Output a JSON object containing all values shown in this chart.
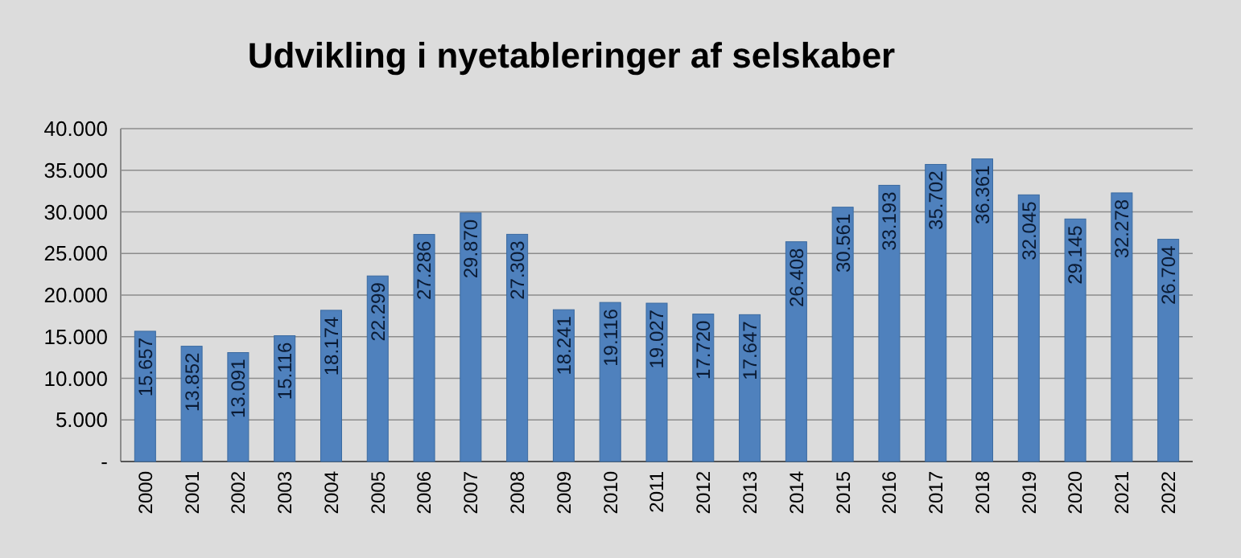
{
  "chart_data": {
    "type": "bar",
    "title": "Udvikling i nyetableringer af selskaber",
    "categories": [
      "2000",
      "2001",
      "2002",
      "2003",
      "2004",
      "2005",
      "2006",
      "2007",
      "2008",
      "2009",
      "2010",
      "2011",
      "2012",
      "2013",
      "2014",
      "2015",
      "2016",
      "2017",
      "2018",
      "2019",
      "2020",
      "2021",
      "2022"
    ],
    "values": [
      15657,
      13852,
      13091,
      15116,
      18174,
      22299,
      27286,
      29870,
      27303,
      18241,
      19116,
      19027,
      17720,
      17647,
      26408,
      30561,
      33193,
      35702,
      36361,
      32045,
      29145,
      32278,
      26704
    ],
    "value_labels": [
      "15.657",
      "13.852",
      "13.091",
      "15.116",
      "18.174",
      "22.299",
      "27.286",
      "29.870",
      "27.303",
      "18.241",
      "19.116",
      "19.027",
      "17.720",
      "17.647",
      "26.408",
      "30.561",
      "33.193",
      "35.702",
      "36.361",
      "32.045",
      "29.145",
      "32.278",
      "26.704"
    ],
    "color": "#4f81bd",
    "ylim": [
      0,
      40000
    ],
    "yticks": [
      {
        "value": 0,
        "label": "-"
      },
      {
        "value": 5000,
        "label": "5.000"
      },
      {
        "value": 10000,
        "label": "10.000"
      },
      {
        "value": 15000,
        "label": "15.000"
      },
      {
        "value": 20000,
        "label": "20.000"
      },
      {
        "value": 25000,
        "label": "25.000"
      },
      {
        "value": 30000,
        "label": "30.000"
      },
      {
        "value": 35000,
        "label": "35.000"
      },
      {
        "value": 40000,
        "label": "40.000"
      }
    ],
    "grid": "y"
  }
}
